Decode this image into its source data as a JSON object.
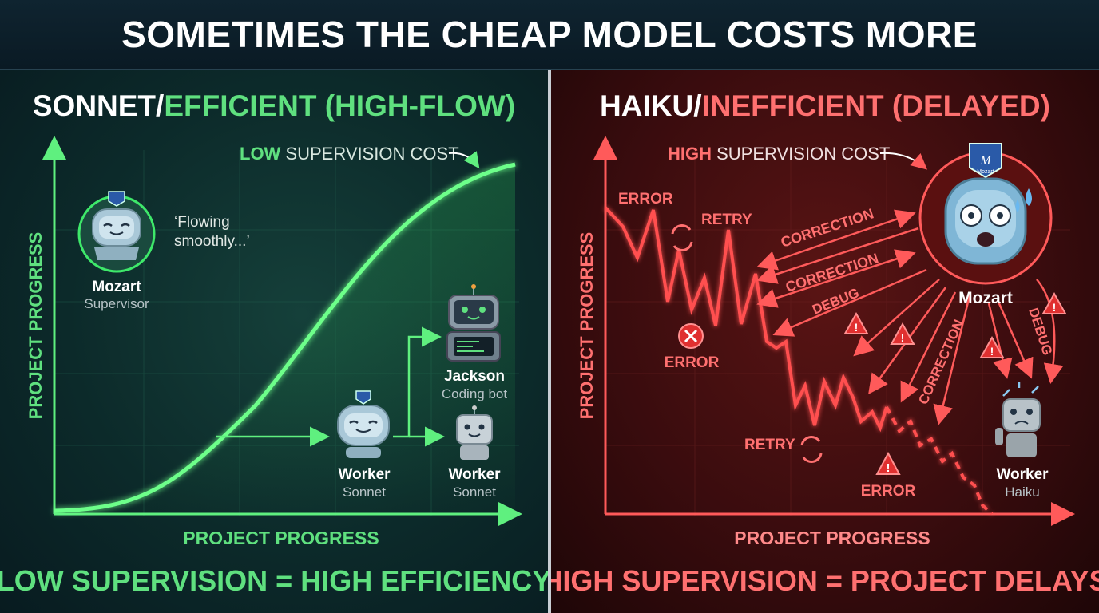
{
  "header": {
    "title": "SOMETIMES THE CHEAP MODEL COSTS MORE"
  },
  "left": {
    "title_prefix": "SONNET/",
    "title_accent": "EFFICIENT (HIGH-FLOW)",
    "cost_accent": "LOW",
    "cost_rest": " SUPERVISION COST",
    "y_axis_label": "PROJECT PROGRESS",
    "x_axis_label": "PROJECT PROGRESS",
    "supervisor": {
      "name": "Mozart",
      "role": "Supervisor"
    },
    "quote_line1": "‘Flowing",
    "quote_line2": "smoothly...’",
    "worker_center": {
      "name": "Worker",
      "role": "Sonnet"
    },
    "jackson": {
      "name": "Jackson",
      "role": "Coding bot"
    },
    "worker_right": {
      "name": "Worker",
      "role": "Sonnet"
    },
    "footer": "LOW SUPERVISION = HIGH EFFICIENCY",
    "accent_color": "#3ee86a"
  },
  "right": {
    "title_prefix": "HAIKU/",
    "title_accent": "INEFFICIENT (DELAYED)",
    "cost_accent": "HIGH",
    "cost_rest": " SUPERVISION COST",
    "y_axis_label": "PROJECT PROGRESS",
    "x_axis_label": "PROJECT PROGRESS",
    "supervisor": {
      "name": "Mozart",
      "badge": "Mozart"
    },
    "worker": {
      "name": "Worker",
      "role": "Haiku"
    },
    "labels": {
      "error_top": "ERROR",
      "retry_top": "RETRY",
      "error_mid": "ERROR",
      "retry_bottom": "RETRY",
      "error_bottom": "ERROR"
    },
    "arrow_labels": {
      "correction1": "CORRECTION",
      "correction2": "CORRECTION",
      "debug1": "DEBUG",
      "correction3": "CORRECTION",
      "debug2": "DEBUG"
    },
    "footer": "HIGH SUPERVISION = PROJECT DELAYS",
    "accent_color": "#ff4a4a"
  }
}
